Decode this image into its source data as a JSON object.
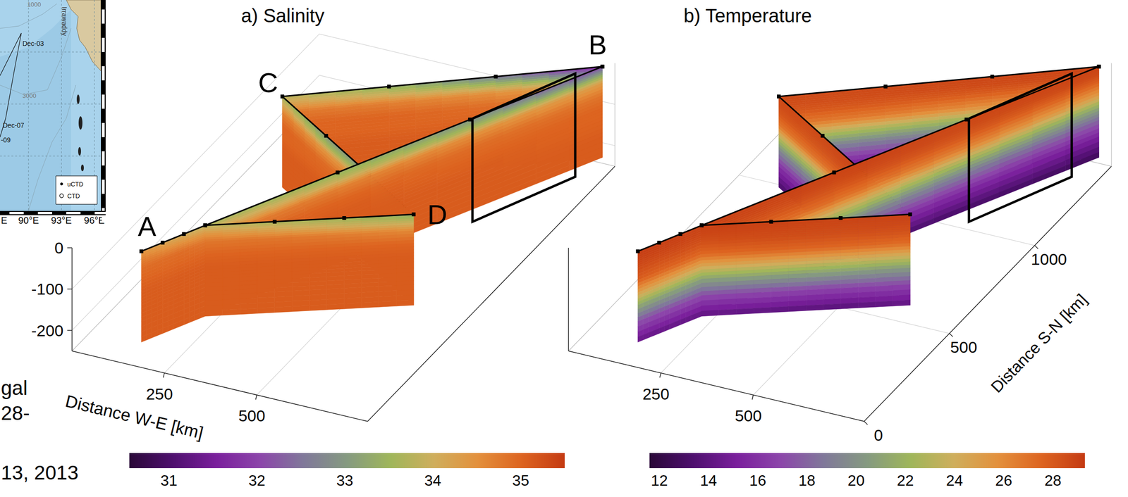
{
  "chart_data": [
    {
      "type": "fence3d",
      "title": "a) Salinity",
      "xlabel": "Distance W-E [km]",
      "xlim": [
        0,
        800
      ],
      "xticks": [
        250,
        500
      ],
      "ylim": [
        0,
        1450
      ],
      "zlim": [
        -250,
        0
      ],
      "zticks": [
        0,
        -100,
        -200
      ],
      "labels": [
        {
          "text": "A",
          "at": [
            160,
            60
          ]
        },
        {
          "text": "B",
          "at": [
            780,
            1420
          ]
        },
        {
          "text": "C",
          "at": [
            140,
            930
          ]
        },
        {
          "text": "D",
          "at": [
            680,
            530
          ]
        }
      ],
      "depths": [
        0,
        -20,
        -40,
        -70,
        -100,
        -130,
        -170,
        -220
      ],
      "sections": [
        {
          "start": [
            140,
            930
          ],
          "end": [
            780,
            1420
          ],
          "values": [
            [
              33.8,
              34.3,
              34.8,
              35.0,
              35.0,
              35.1,
              35.1,
              35.1
            ],
            [
              33.4,
              34.0,
              34.7,
              35.0,
              35.0,
              35.1,
              35.1,
              35.1
            ],
            [
              32.6,
              33.6,
              34.5,
              34.9,
              35.0,
              35.1,
              35.1,
              35.1
            ],
            [
              31.6,
              33.0,
              34.2,
              34.8,
              35.0,
              35.0,
              35.1,
              35.1
            ]
          ]
        },
        {
          "start": [
            680,
            530
          ],
          "end": [
            140,
            930
          ],
          "values": [
            [
              33.2,
              33.8,
              34.6,
              35.0,
              35.0,
              35.1,
              35.1,
              35.1
            ],
            [
              33.0,
              33.6,
              34.5,
              34.9,
              35.0,
              35.1,
              35.1,
              35.1
            ],
            [
              33.0,
              33.5,
              34.4,
              34.9,
              35.0,
              35.1,
              35.1,
              35.1
            ],
            [
              33.6,
              34.2,
              34.7,
              35.0,
              35.0,
              35.1,
              35.1,
              35.1
            ]
          ]
        },
        {
          "start": [
            245,
            250
          ],
          "end": [
            780,
            1420
          ],
          "values": [
            [
              33.6,
              34.2,
              34.8,
              35.0,
              35.1,
              35.1,
              35.1,
              35.1
            ],
            [
              33.4,
              33.9,
              34.7,
              35.0,
              35.1,
              35.1,
              35.1,
              35.1
            ],
            [
              32.9,
              33.5,
              34.5,
              34.9,
              35.0,
              35.1,
              35.1,
              35.1
            ],
            [
              32.0,
              33.2,
              34.3,
              34.8,
              35.0,
              35.0,
              35.1,
              35.1
            ]
          ]
        },
        {
          "start": [
            245,
            250
          ],
          "end": [
            680,
            530
          ],
          "values": [
            [
              33.8,
              34.4,
              34.8,
              35.0,
              35.1,
              35.1,
              35.1,
              35.1
            ],
            [
              33.6,
              34.2,
              34.8,
              35.0,
              35.1,
              35.1,
              35.1,
              35.1
            ],
            [
              33.5,
              34.0,
              34.7,
              35.0,
              35.1,
              35.1,
              35.1,
              35.1
            ],
            [
              33.3,
              33.9,
              34.6,
              35.0,
              35.1,
              35.1,
              35.1,
              35.1
            ]
          ]
        },
        {
          "start": [
            160,
            60
          ],
          "end": [
            245,
            250
          ],
          "values": [
            [
              34.4,
              34.7,
              34.9,
              35.0,
              35.1,
              35.1,
              35.1,
              35.1
            ],
            [
              34.2,
              34.6,
              34.9,
              35.0,
              35.1,
              35.1,
              35.1,
              35.1
            ],
            [
              34.0,
              34.5,
              34.9,
              35.0,
              35.1,
              35.1,
              35.1,
              35.1
            ],
            [
              33.8,
              34.4,
              34.8,
              35.0,
              35.1,
              35.1,
              35.1,
              35.1
            ]
          ]
        }
      ],
      "highlight": {
        "start": [
          605,
          1037
        ],
        "end": [
          735,
          1358
        ],
        "depth": [
          0,
          -250
        ]
      },
      "colorbar": {
        "range": [
          30.55,
          35.5
        ],
        "ticks": [
          31,
          32,
          33,
          34,
          35
        ],
        "colors": [
          "#2a0838",
          "#4e0f6e",
          "#7a1f9c",
          "#8c45aa",
          "#80789a",
          "#859a80",
          "#9fb65a",
          "#cfae5c",
          "#e3903c",
          "#dd6420",
          "#c43a12"
        ]
      }
    },
    {
      "type": "fence3d",
      "title": "b) Temperature",
      "ylabel": "Distance S-N [km]",
      "xlim": [
        0,
        800
      ],
      "xticks": [
        250,
        500
      ],
      "ylim": [
        0,
        1450
      ],
      "yticks": [
        0,
        500,
        1000
      ],
      "zlim": [
        -250,
        0
      ],
      "depths": [
        0,
        -20,
        -40,
        -70,
        -100,
        -130,
        -170,
        -220
      ],
      "sections": [
        {
          "start": [
            140,
            930
          ],
          "end": [
            780,
            1420
          ],
          "values": [
            [
              28.6,
              28.5,
              28.1,
              26.8,
              23.0,
              19.5,
              16.0,
              13.2
            ],
            [
              28.7,
              28.5,
              28.0,
              26.5,
              22.5,
              19.0,
              15.8,
              13.0
            ],
            [
              28.8,
              28.6,
              27.8,
              25.8,
              21.8,
              18.5,
              15.5,
              12.8
            ],
            [
              28.9,
              28.6,
              27.5,
              25.0,
              21.0,
              18.0,
              15.2,
              12.6
            ]
          ]
        },
        {
          "start": [
            680,
            530
          ],
          "end": [
            140,
            930
          ],
          "values": [
            [
              28.9,
              28.7,
              28.3,
              27.2,
              24.0,
              20.5,
              17.0,
              14.0
            ],
            [
              28.8,
              28.6,
              28.2,
              27.0,
              23.5,
              20.0,
              16.5,
              13.6
            ],
            [
              28.7,
              28.5,
              28.1,
              26.9,
              23.2,
              19.8,
              16.2,
              13.4
            ],
            [
              28.6,
              28.5,
              28.1,
              26.8,
              23.0,
              19.5,
              16.0,
              13.2
            ]
          ]
        },
        {
          "start": [
            245,
            250
          ],
          "end": [
            780,
            1420
          ],
          "values": [
            [
              29.0,
              28.8,
              28.4,
              27.4,
              24.5,
              21.0,
              17.2,
              14.0
            ],
            [
              28.9,
              28.7,
              28.2,
              27.0,
              23.5,
              20.0,
              16.5,
              13.5
            ],
            [
              28.8,
              28.6,
              28.0,
              26.2,
              22.5,
              19.0,
              15.8,
              13.0
            ],
            [
              28.9,
              28.6,
              27.5,
              25.0,
              21.0,
              18.0,
              15.2,
              12.6
            ]
          ]
        },
        {
          "start": [
            245,
            250
          ],
          "end": [
            680,
            530
          ],
          "values": [
            [
              29.0,
              28.8,
              28.4,
              27.4,
              24.5,
              21.0,
              17.2,
              14.0
            ],
            [
              29.0,
              28.8,
              28.5,
              27.5,
              24.5,
              21.0,
              17.0,
              13.8
            ],
            [
              28.9,
              28.7,
              28.4,
              27.4,
              24.2,
              20.8,
              16.8,
              13.6
            ],
            [
              28.9,
              28.7,
              28.3,
              27.2,
              24.0,
              20.5,
              17.0,
              14.0
            ]
          ]
        },
        {
          "start": [
            160,
            60
          ],
          "end": [
            245,
            250
          ],
          "values": [
            [
              29.2,
              29.0,
              28.6,
              27.8,
              25.0,
              21.5,
              17.5,
              14.2
            ],
            [
              29.1,
              28.9,
              28.5,
              27.6,
              24.8,
              21.2,
              17.3,
              14.1
            ],
            [
              29.0,
              28.9,
              28.5,
              27.5,
              24.6,
              21.0,
              17.2,
              14.0
            ],
            [
              29.0,
              28.8,
              28.4,
              27.4,
              24.5,
              21.0,
              17.2,
              14.0
            ]
          ]
        }
      ],
      "highlight": {
        "start": [
          605,
          1037
        ],
        "end": [
          735,
          1358
        ],
        "depth": [
          0,
          -250
        ]
      },
      "colorbar": {
        "range": [
          11.6,
          29.3
        ],
        "ticks": [
          12,
          14,
          16,
          18,
          20,
          22,
          24,
          26,
          28
        ],
        "colors": [
          "#2a0838",
          "#4e0f6e",
          "#7a1f9c",
          "#8c45aa",
          "#80789a",
          "#859a80",
          "#9fb65a",
          "#cfae5c",
          "#e3903c",
          "#dd6420",
          "#c43a12"
        ]
      }
    }
  ],
  "map": {
    "lonlim": [
      87.4,
      96.6
    ],
    "lonticks": [
      {
        "value": 90,
        "label": "90°E"
      },
      {
        "value": 93,
        "label": "93°E"
      },
      {
        "value": 96,
        "label": "96°E"
      }
    ],
    "texts": [
      "Irrawaddy",
      "1000",
      "Dec-03",
      "3000",
      "Dec-07",
      "-09",
      "E"
    ],
    "markers": [
      {
        "name": "uCTD",
        "marker": "dot"
      },
      {
        "name": "CTD",
        "marker": "circle"
      }
    ]
  },
  "fragments": [
    "gal",
    "28-",
    "13, 2013"
  ]
}
